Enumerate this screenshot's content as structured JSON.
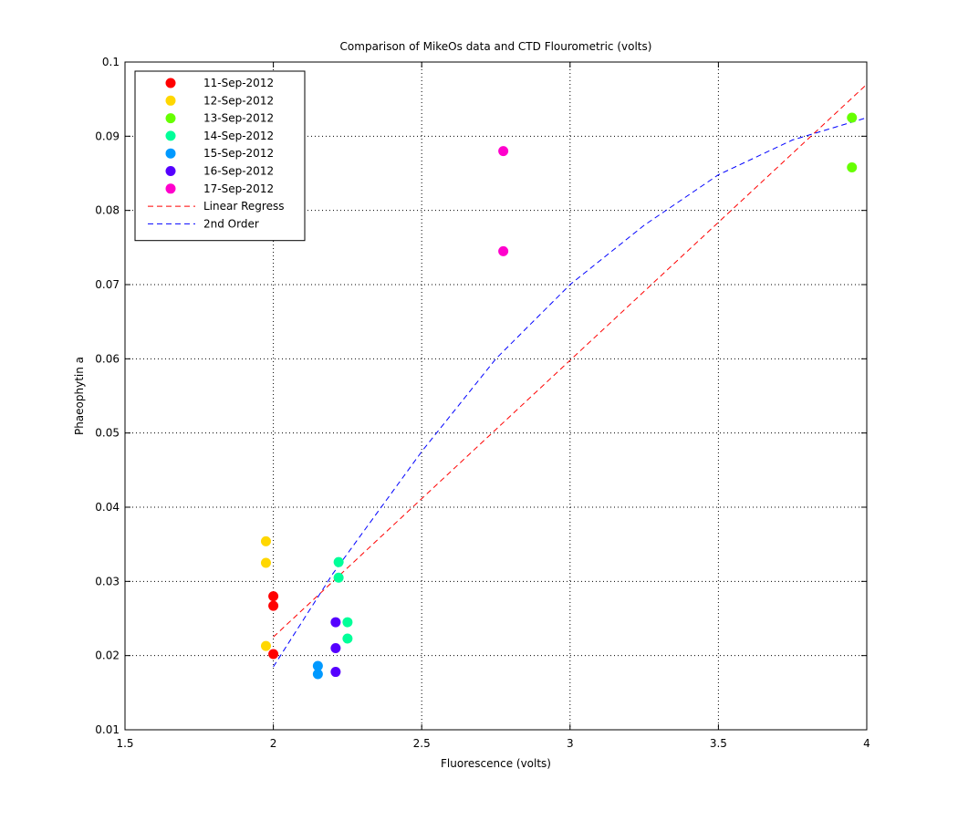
{
  "chart_data": {
    "type": "scatter",
    "title": "Comparison of MikeOs data and CTD Flourometric (volts)",
    "xlabel": "Fluorescence (volts)",
    "ylabel": "Phaeophytin a",
    "xlim": [
      1.5,
      4
    ],
    "ylim": [
      0.01,
      0.1
    ],
    "xticks": [
      "1.5",
      "2",
      "2.5",
      "3",
      "3.5",
      "4"
    ],
    "yticks": [
      "0.01",
      "0.02",
      "0.03",
      "0.04",
      "0.05",
      "0.06",
      "0.07",
      "0.08",
      "0.09",
      "0.1"
    ],
    "grid": true,
    "legend_position": "top-left",
    "series": [
      {
        "name": "11-Sep-2012",
        "color": "#ff0000",
        "points": [
          [
            2.0,
            0.028
          ],
          [
            2.0,
            0.0267
          ],
          [
            2.0,
            0.0202
          ]
        ]
      },
      {
        "name": "12-Sep-2012",
        "color": "#ffd700",
        "points": [
          [
            1.975,
            0.0354
          ],
          [
            1.975,
            0.0325
          ],
          [
            1.975,
            0.0213
          ]
        ]
      },
      {
        "name": "13-Sep-2012",
        "color": "#66ff00",
        "points": [
          [
            3.95,
            0.0925
          ],
          [
            3.95,
            0.0858
          ]
        ]
      },
      {
        "name": "14-Sep-2012",
        "color": "#00ff99",
        "points": [
          [
            2.22,
            0.0326
          ],
          [
            2.22,
            0.0305
          ],
          [
            2.25,
            0.0245
          ],
          [
            2.25,
            0.0223
          ]
        ]
      },
      {
        "name": "15-Sep-2012",
        "color": "#0099ff",
        "points": [
          [
            2.15,
            0.0186
          ],
          [
            2.15,
            0.0175
          ]
        ]
      },
      {
        "name": "16-Sep-2012",
        "color": "#5500ff",
        "points": [
          [
            2.21,
            0.0245
          ],
          [
            2.21,
            0.021
          ],
          [
            2.21,
            0.0178
          ]
        ]
      },
      {
        "name": "17-Sep-2012",
        "color": "#ff00cc",
        "points": [
          [
            2.775,
            0.088
          ],
          [
            2.775,
            0.0745
          ]
        ]
      }
    ],
    "fits": [
      {
        "name": "Linear Regress",
        "color": "#ff0000",
        "style": "dashed",
        "points": [
          [
            2.0,
            0.0225
          ],
          [
            3.0,
            0.0598
          ],
          [
            4.0,
            0.097
          ]
        ]
      },
      {
        "name": "2nd Order",
        "color": "#0000ff",
        "style": "dashed",
        "points": [
          [
            2.0,
            0.0185
          ],
          [
            2.2,
            0.031
          ],
          [
            2.5,
            0.0475
          ],
          [
            2.75,
            0.06
          ],
          [
            3.0,
            0.07
          ],
          [
            3.25,
            0.078
          ],
          [
            3.5,
            0.0848
          ],
          [
            3.75,
            0.0895
          ],
          [
            4.0,
            0.0925
          ]
        ]
      }
    ]
  }
}
